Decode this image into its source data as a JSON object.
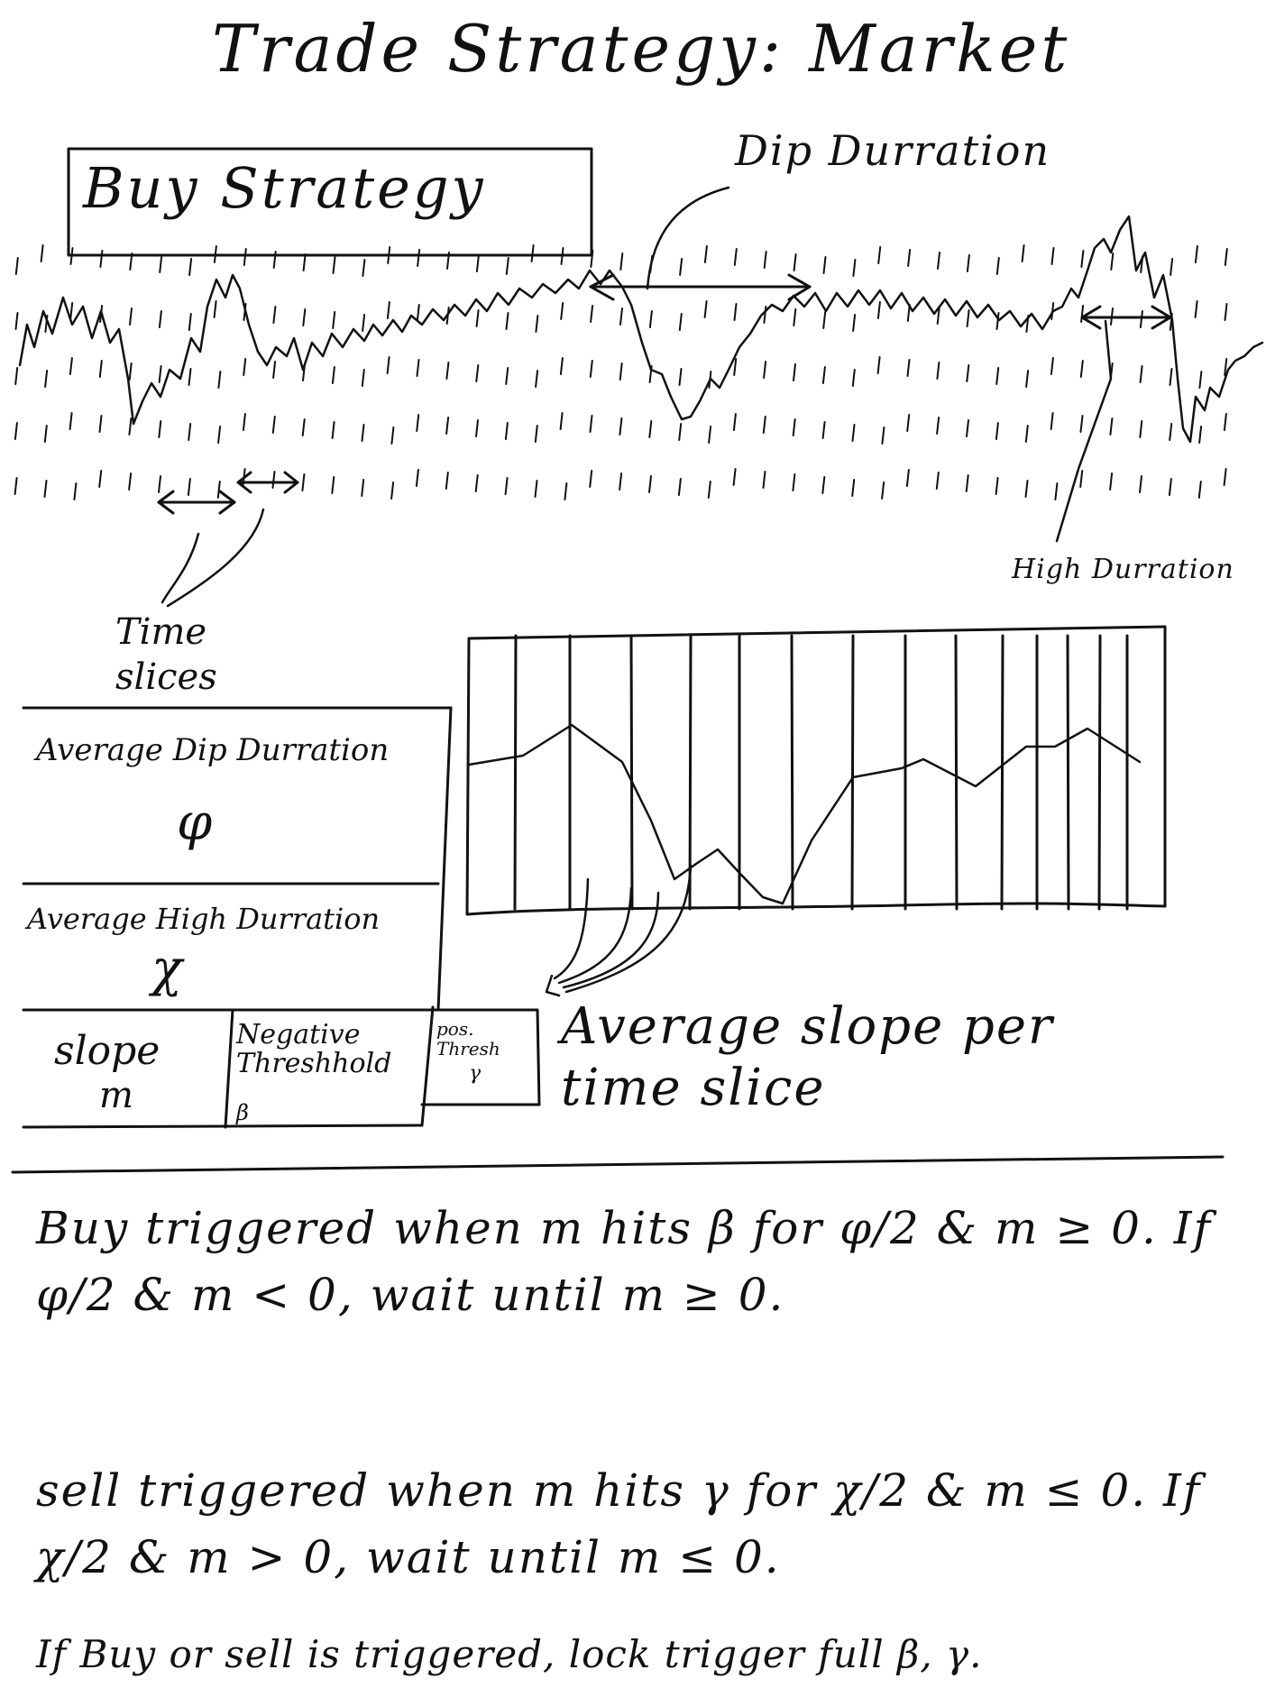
{
  "title": "Trade Strategy: Market",
  "buy_strategy_label": "Buy Strategy",
  "annotations": {
    "dip_duration": "Dip Durration",
    "high_duration": "High Durration",
    "time_slices": "Time slices",
    "average_slope": "Average slope per time slice"
  },
  "table": {
    "avg_dip_duration": {
      "label": "Average Dip Durration",
      "symbol": "φ"
    },
    "avg_high_duration": {
      "label": "Average High Durration",
      "symbol": "χ"
    },
    "slope": {
      "label": "slope",
      "symbol": "m"
    },
    "negative_threshold": {
      "label": "Negative Threshhold",
      "symbol": "β"
    },
    "positive_threshold": {
      "label": "pos. Thresh",
      "symbol": "γ"
    }
  },
  "rules": {
    "buy": "Buy triggered when m hits β for φ/2 & m ≥ 0. If φ/2 & m < 0, wait until m ≥ 0.",
    "sell": "sell triggered when m hits γ for χ/2 & m ≤ 0. If χ/2 & m > 0, wait until m ≤ 0.",
    "lock": "If Buy or sell is triggered, lock trigger full β, γ."
  },
  "colors": {
    "ink": "#111111",
    "paper": "#ffffff"
  }
}
